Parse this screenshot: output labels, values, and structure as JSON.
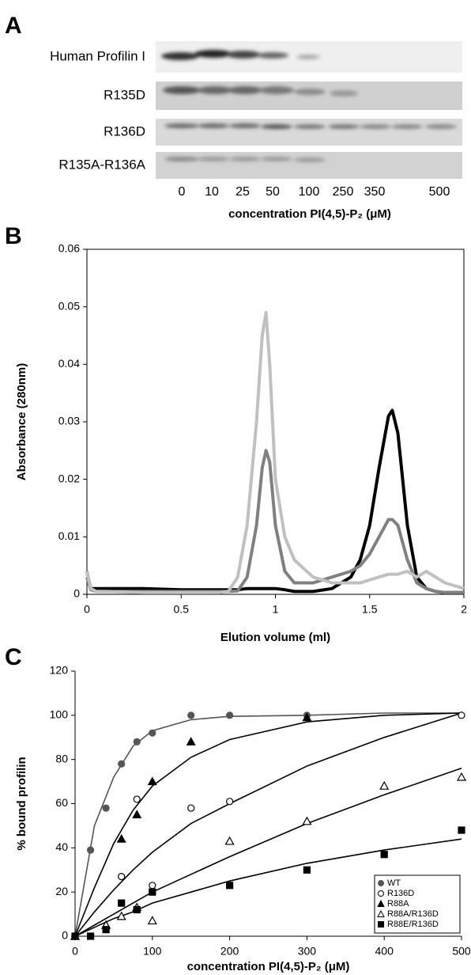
{
  "panel_a": {
    "letter": "A",
    "lanes": [
      "Human Profilin I",
      "R135D",
      "R136D",
      "R135A-R136A"
    ],
    "concentrations": [
      "0",
      "10",
      "25",
      "50",
      "100",
      "250",
      "350",
      "500"
    ],
    "xlabel": "concentration PI(4,5)-P₂ (μM)"
  },
  "chart_data": [
    {
      "type": "line",
      "letter": "B",
      "xlabel": "Elution volume (ml)",
      "ylabel": "Absorbance (280nm)",
      "x": [
        0,
        0.02,
        0.05,
        0.1,
        0.3,
        0.5,
        0.7,
        0.75,
        0.8,
        0.85,
        0.9,
        0.93,
        0.95,
        0.97,
        1.0,
        1.05,
        1.1,
        1.2,
        1.3,
        1.4,
        1.45,
        1.5,
        1.55,
        1.6,
        1.62,
        1.65,
        1.7,
        1.75,
        1.8,
        1.85,
        1.9,
        2.0
      ],
      "series": [
        {
          "color": "#000000",
          "values": [
            0.004,
            0.001,
            0.001,
            0.001,
            0.001,
            0.0008,
            0.0008,
            0.0008,
            0.0008,
            0.001,
            0.001,
            0.001,
            0.001,
            0.001,
            0.001,
            0.0008,
            0.0005,
            0.0005,
            0.001,
            0.003,
            0.006,
            0.012,
            0.022,
            0.031,
            0.032,
            0.028,
            0.012,
            0.003,
            0.001,
            0.0005,
            0.0003,
            0.0003
          ]
        },
        {
          "color": "#808080",
          "values": [
            0.003,
            0.0008,
            0.0005,
            0.0005,
            0.0005,
            0.0005,
            0.0005,
            0.0005,
            0.0006,
            0.003,
            0.012,
            0.022,
            0.025,
            0.023,
            0.012,
            0.004,
            0.002,
            0.002,
            0.003,
            0.004,
            0.005,
            0.007,
            0.01,
            0.013,
            0.013,
            0.012,
            0.006,
            0.002,
            0.001,
            0.0005,
            0.0003,
            0.0003
          ]
        },
        {
          "color": "#c0c0c0",
          "values": [
            0.004,
            0.001,
            0.0005,
            0.0005,
            0.0003,
            0.0003,
            0.0003,
            0.0005,
            0.003,
            0.012,
            0.03,
            0.045,
            0.049,
            0.04,
            0.02,
            0.01,
            0.006,
            0.003,
            0.002,
            0.002,
            0.002,
            0.0025,
            0.003,
            0.0035,
            0.0035,
            0.0035,
            0.004,
            0.003,
            0.004,
            0.003,
            0.002,
            0.001
          ]
        }
      ],
      "xlim": [
        0,
        2
      ],
      "xticks": [
        0,
        0.5,
        1,
        1.5,
        2
      ],
      "ylim": [
        0,
        0.06
      ],
      "yticks": [
        0,
        0.01,
        0.02,
        0.03,
        0.04,
        0.05,
        0.06
      ],
      "frame": true
    },
    {
      "type": "scatter",
      "letter": "C",
      "xlabel": "concentration PI(4,5)-P₂ (μM)",
      "ylabel": "% bound profilin",
      "fit_x": [
        0,
        25,
        50,
        75,
        100,
        150,
        200,
        300,
        400,
        500
      ],
      "series": [
        {
          "name": "WT",
          "color": "#555555",
          "marker": "circle",
          "filled": true,
          "fit_color": "#555555",
          "x": [
            0,
            20,
            40,
            60,
            80,
            100,
            150,
            200,
            300
          ],
          "values": [
            0,
            39,
            58,
            78,
            88,
            92,
            100,
            100,
            100
          ],
          "fit": [
            0,
            50,
            72,
            86,
            93,
            98,
            99.5,
            100,
            101,
            101
          ]
        },
        {
          "name": "R136D",
          "color": "#000000",
          "marker": "circle",
          "filled": false,
          "fit_color": "#000000",
          "x": [
            0,
            60,
            80,
            100,
            150,
            200,
            500
          ],
          "values": [
            0,
            27,
            62,
            23,
            58,
            61,
            100
          ],
          "fit": [
            0,
            11,
            21,
            30,
            38,
            51,
            60,
            77,
            90,
            101
          ]
        },
        {
          "name": "R88A",
          "color": "#000000",
          "marker": "triangle",
          "filled": true,
          "fit_color": "#000000",
          "x": [
            0,
            40,
            60,
            80,
            100,
            150,
            300
          ],
          "values": [
            0,
            5,
            44,
            55,
            70,
            88,
            99
          ],
          "fit": [
            0,
            22,
            42,
            57,
            68,
            81,
            89,
            97,
            100,
            101
          ]
        },
        {
          "name": "R88A/R136D",
          "color": "#000000",
          "marker": "triangle",
          "filled": false,
          "fit_color": "#000000",
          "x": [
            0,
            40,
            60,
            80,
            100,
            200,
            300,
            400,
            500
          ],
          "values": [
            0,
            5,
            9,
            13,
            7,
            43,
            52,
            68,
            72
          ],
          "fit": [
            0,
            5,
            10,
            15,
            20,
            28,
            36,
            51,
            64,
            76
          ]
        },
        {
          "name": "R88E/R136D",
          "color": "#000000",
          "marker": "square",
          "filled": true,
          "fit_color": "#000000",
          "x": [
            0,
            20,
            40,
            60,
            80,
            100,
            200,
            300,
            400,
            500
          ],
          "values": [
            0,
            0,
            3,
            15,
            12,
            20,
            23,
            30,
            37,
            48
          ],
          "fit": [
            0,
            4,
            8,
            11,
            15,
            20,
            25,
            33,
            39,
            44
          ]
        }
      ],
      "xlim": [
        0,
        500
      ],
      "xticks": [
        0,
        100,
        200,
        300,
        400,
        500
      ],
      "ylim": [
        0,
        120
      ],
      "yticks": [
        0,
        20,
        40,
        60,
        80,
        100,
        120
      ],
      "frame": false,
      "legend": "lower right"
    }
  ]
}
